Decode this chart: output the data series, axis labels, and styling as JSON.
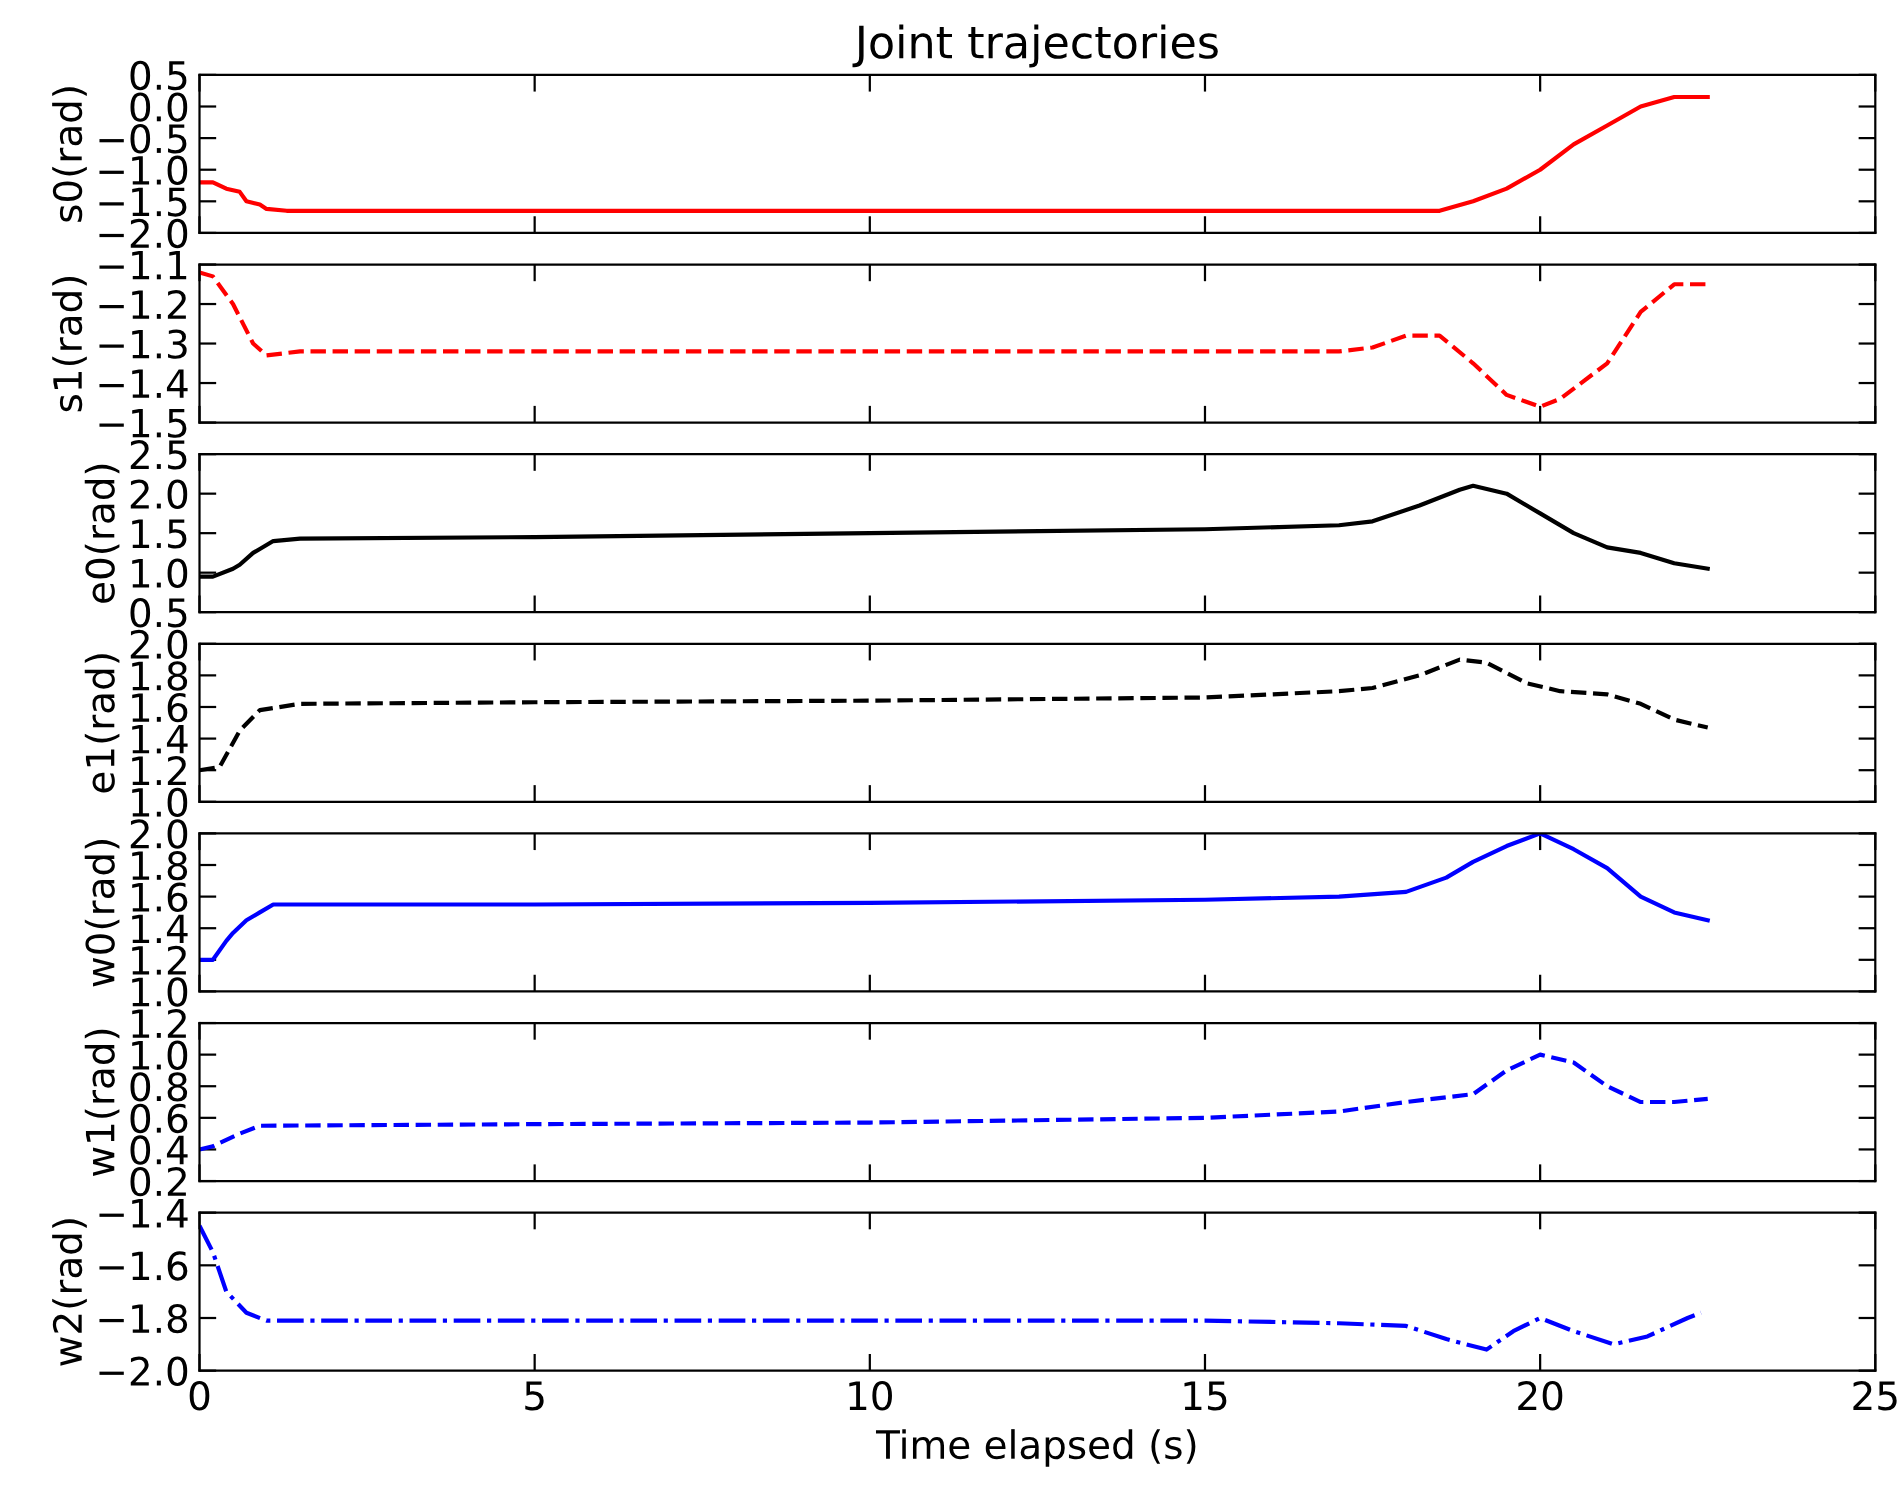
{
  "chart_data": [
    {
      "type": "line",
      "title": "Joint trajectories",
      "ylabel": "s0(rad)",
      "tick_labels": "y",
      "xlim": [
        0,
        25
      ],
      "xticks": [
        0,
        5,
        10,
        15,
        20,
        25
      ],
      "ylim": [
        -2.0,
        0.5
      ],
      "yticks": [
        {
          "value": -2.0,
          "label": "−2.0"
        },
        {
          "value": -1.5,
          "label": "−1.5"
        },
        {
          "value": -1.0,
          "label": "−1.0"
        },
        {
          "value": -0.5,
          "label": "−0.5"
        },
        {
          "value": 0.0,
          "label": "0.0"
        },
        {
          "value": 0.5,
          "label": "0.5"
        }
      ],
      "series": [
        {
          "color": "#ff0000",
          "line_style": "solid",
          "x": [
            0,
            0.2,
            0.4,
            0.6,
            0.7,
            0.9,
            1.0,
            1.3,
            18.5,
            19,
            19.5,
            20,
            20.5,
            21,
            21.5,
            22,
            22.5
          ],
          "values": [
            -1.2,
            -1.2,
            -1.3,
            -1.35,
            -1.5,
            -1.55,
            -1.62,
            -1.65,
            -1.65,
            -1.5,
            -1.3,
            -1.0,
            -0.6,
            -0.3,
            0.0,
            0.15,
            0.15
          ]
        }
      ]
    },
    {
      "type": "line",
      "ylabel": "s1(rad)",
      "tick_labels": "y",
      "xlim": [
        0,
        25
      ],
      "xticks": [
        0,
        5,
        10,
        15,
        20,
        25
      ],
      "ylim": [
        -1.5,
        -1.1
      ],
      "yticks": [
        {
          "value": -1.5,
          "label": "−1.5"
        },
        {
          "value": -1.4,
          "label": "−1.4"
        },
        {
          "value": -1.3,
          "label": "−1.3"
        },
        {
          "value": -1.2,
          "label": "−1.2"
        },
        {
          "value": -1.1,
          "label": "−1.1"
        }
      ],
      "series": [
        {
          "color": "#ff0000",
          "line_style": "dashed",
          "x": [
            0,
            0.2,
            0.5,
            0.8,
            1.0,
            1.5,
            17,
            17.5,
            18,
            18.5,
            19,
            19.5,
            20,
            20.3,
            21,
            21.5,
            22,
            22.5
          ],
          "values": [
            -1.12,
            -1.13,
            -1.2,
            -1.3,
            -1.33,
            -1.32,
            -1.32,
            -1.31,
            -1.28,
            -1.28,
            -1.35,
            -1.43,
            -1.46,
            -1.44,
            -1.35,
            -1.22,
            -1.15,
            -1.15
          ]
        }
      ]
    },
    {
      "type": "line",
      "ylabel": "e0(rad)",
      "tick_labels": "y",
      "xlim": [
        0,
        25
      ],
      "xticks": [
        0,
        5,
        10,
        15,
        20,
        25
      ],
      "ylim": [
        0.5,
        2.5
      ],
      "yticks": [
        0.5,
        {
          "value": 1.0,
          "label": "1.0"
        },
        1.5,
        {
          "value": 2.0,
          "label": "2.0"
        },
        2.5
      ],
      "series": [
        {
          "color": "#000000",
          "line_style": "solid",
          "x": [
            0,
            0.2,
            0.5,
            0.6,
            0.8,
            0.9,
            1.1,
            1.5,
            5,
            10,
            15,
            17,
            17.5,
            18.2,
            18.8,
            19,
            19.5,
            20,
            20.5,
            21,
            21.5,
            22,
            22.5
          ],
          "values": [
            0.95,
            0.95,
            1.05,
            1.1,
            1.25,
            1.3,
            1.4,
            1.43,
            1.45,
            1.5,
            1.55,
            1.6,
            1.65,
            1.85,
            2.05,
            2.1,
            2.0,
            1.75,
            1.5,
            1.32,
            1.25,
            1.12,
            1.05
          ]
        }
      ]
    },
    {
      "type": "line",
      "ylabel": "e1(rad)",
      "tick_labels": "y",
      "xlim": [
        0,
        25
      ],
      "xticks": [
        0,
        5,
        10,
        15,
        20,
        25
      ],
      "ylim": [
        1.0,
        2.0
      ],
      "yticks": [
        {
          "value": 1.0,
          "label": "1.0"
        },
        1.2,
        1.4,
        1.6,
        1.8,
        {
          "value": 2.0,
          "label": "2.0"
        }
      ],
      "series": [
        {
          "color": "#000000",
          "line_style": "dashed",
          "x": [
            0,
            0.3,
            0.6,
            0.9,
            1.5,
            5,
            10,
            15,
            17,
            17.5,
            18.2,
            18.8,
            19.2,
            19.8,
            20.3,
            21,
            21.5,
            22,
            22.5
          ],
          "values": [
            1.2,
            1.22,
            1.45,
            1.58,
            1.62,
            1.63,
            1.64,
            1.66,
            1.7,
            1.72,
            1.8,
            1.9,
            1.88,
            1.75,
            1.7,
            1.68,
            1.62,
            1.52,
            1.47
          ]
        }
      ]
    },
    {
      "type": "line",
      "ylabel": "w0(rad)",
      "tick_labels": "y",
      "xlim": [
        0,
        25
      ],
      "xticks": [
        0,
        5,
        10,
        15,
        20,
        25
      ],
      "ylim": [
        1.0,
        2.0
      ],
      "yticks": [
        {
          "value": 1.0,
          "label": "1.0"
        },
        1.2,
        1.4,
        1.6,
        1.8,
        {
          "value": 2.0,
          "label": "2.0"
        }
      ],
      "series": [
        {
          "color": "#0000ff",
          "line_style": "solid",
          "x": [
            0,
            0.2,
            0.4,
            0.5,
            0.7,
            0.9,
            1.1,
            5,
            10,
            15,
            17,
            18,
            18.6,
            19,
            19.5,
            20,
            20.5,
            21,
            21.5,
            22,
            22.5
          ],
          "values": [
            1.2,
            1.2,
            1.32,
            1.37,
            1.45,
            1.5,
            1.55,
            1.55,
            1.56,
            1.58,
            1.6,
            1.63,
            1.72,
            1.82,
            1.92,
            2.0,
            1.9,
            1.78,
            1.6,
            1.5,
            1.45
          ]
        }
      ]
    },
    {
      "type": "line",
      "ylabel": "w1(rad)",
      "tick_labels": "y",
      "xlim": [
        0,
        25
      ],
      "xticks": [
        0,
        5,
        10,
        15,
        20,
        25
      ],
      "ylim": [
        0.2,
        1.2
      ],
      "yticks": [
        0.2,
        0.4,
        0.6,
        0.8,
        {
          "value": 1.0,
          "label": "1.0"
        },
        1.2
      ],
      "series": [
        {
          "color": "#0000ff",
          "line_style": "dashed",
          "x": [
            0,
            0.2,
            0.6,
            0.9,
            5,
            10,
            15,
            17,
            18,
            19,
            19.5,
            20,
            20.5,
            21,
            21.5,
            22,
            22.5
          ],
          "values": [
            0.4,
            0.42,
            0.5,
            0.55,
            0.56,
            0.57,
            0.6,
            0.64,
            0.7,
            0.75,
            0.9,
            1.0,
            0.95,
            0.8,
            0.7,
            0.7,
            0.72
          ]
        }
      ]
    },
    {
      "type": "line",
      "ylabel": "w2(rad)",
      "xlabel": "Time elapsed (s)",
      "xlim": [
        0,
        25
      ],
      "xticks": [
        0,
        5,
        10,
        15,
        20,
        25
      ],
      "ylim": [
        -2.0,
        -1.4
      ],
      "yticks": [
        {
          "value": -2.0,
          "label": "−2.0"
        },
        {
          "value": -1.8,
          "label": "−1.8"
        },
        {
          "value": -1.6,
          "label": "−1.6"
        },
        {
          "value": -1.4,
          "label": "−1.4"
        }
      ],
      "series": [
        {
          "color": "#0000ff",
          "line_style": "dashdot",
          "x": [
            0,
            0.2,
            0.4,
            0.7,
            1.0,
            5,
            10,
            15,
            17,
            18,
            18.6,
            19.2,
            19.6,
            20,
            20.5,
            21.1,
            21.6,
            22.2,
            22.4
          ],
          "values": [
            -1.45,
            -1.55,
            -1.7,
            -1.78,
            -1.81,
            -1.81,
            -1.81,
            -1.81,
            -1.82,
            -1.83,
            -1.88,
            -1.92,
            -1.85,
            -1.8,
            -1.85,
            -1.9,
            -1.87,
            -1.8,
            -1.78
          ]
        }
      ]
    }
  ]
}
